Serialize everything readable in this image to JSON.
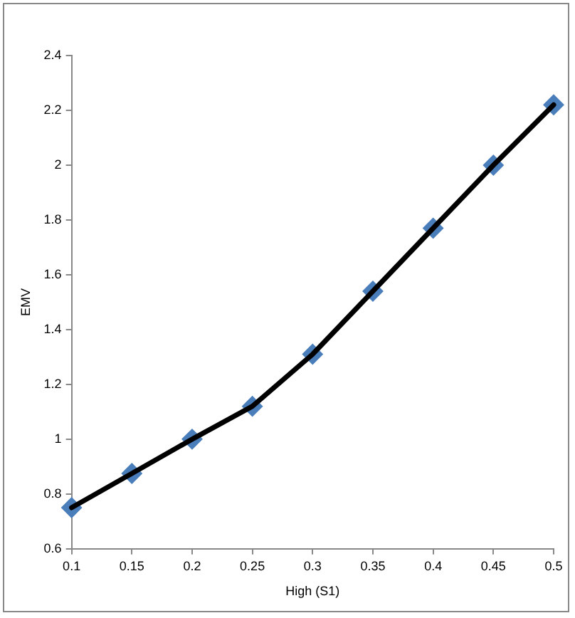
{
  "chart_data": {
    "type": "line",
    "xlabel": "High (S1)",
    "ylabel": "EMV",
    "x": [
      0.1,
      0.15,
      0.2,
      0.25,
      0.3,
      0.35,
      0.4,
      0.45,
      0.5
    ],
    "series": [
      {
        "marker": "none",
        "color": "#000000",
        "values": [
          0.75,
          0.875,
          1.0,
          1.12,
          1.31,
          1.54,
          1.77,
          2.0,
          2.22
        ]
      },
      {
        "type": "scatter",
        "color": "#4a7ebb",
        "values": [
          0.75,
          0.875,
          1.0,
          1.12,
          1.31,
          1.54,
          1.77,
          2.0,
          2.22
        ]
      }
    ],
    "xlim": [
      0.1,
      0.5
    ],
    "xticks": [
      0.1,
      0.15,
      0.2,
      0.25,
      0.3,
      0.35,
      0.4,
      0.45,
      0.5
    ],
    "ylim": [
      0.6,
      2.4
    ],
    "yticks": [
      0.6,
      0.8,
      1,
      1.2,
      1.4,
      1.6,
      1.8,
      2,
      2.2,
      2.4
    ],
    "grid": false,
    "legend": false,
    "marker": "diamond",
    "line_style": "solid"
  }
}
